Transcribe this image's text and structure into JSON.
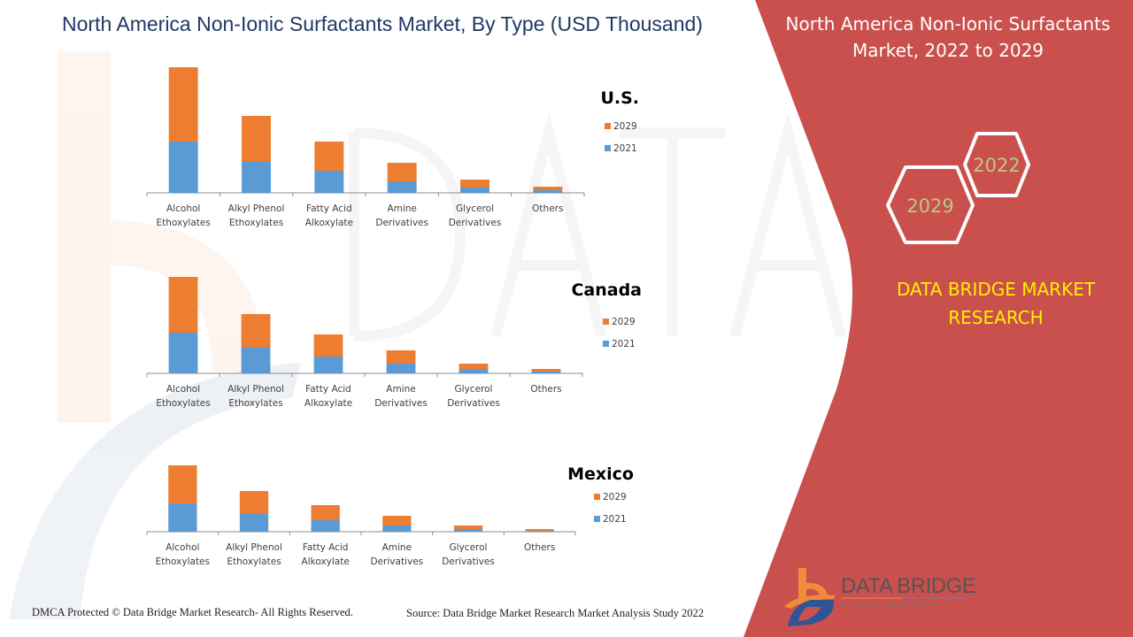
{
  "header": {
    "title": "North America Non-Ionic Surfactants Market, By Type (USD Thousand)"
  },
  "side_panel": {
    "title_line1": "North America Non-Ionic Surfactants",
    "title_line2": "Market, 2022 to 2029",
    "hex_year_1": "2022",
    "hex_year_2": "2029",
    "brand_line1": "DATA BRIDGE MARKET",
    "brand_line2": "RESEARCH",
    "logo_name": "DATA BRIDGE",
    "logo_sub": "MARKET RESEARCH"
  },
  "footer": {
    "copyright": "DMCA Protected © Data Bridge Market Research- All Rights Reserved.",
    "source": "Source: Data Bridge Market Research Market Analysis Study 2022"
  },
  "colors": {
    "series_2029": "#ed7d31",
    "series_2021": "#5b9bd5",
    "panel_red": "#c9504d",
    "brand_yellow": "#ffef00",
    "title_navy": "#1f3864",
    "hex_text": "#b8c98a"
  },
  "chart_data": [
    {
      "type": "bar",
      "stacked": true,
      "title": "U.S.",
      "xlabel": "",
      "ylabel": "",
      "unit": "USD Thousand (relative, no axis shown)",
      "categories": [
        [
          "Alcohol",
          "Ethoxylates"
        ],
        [
          "Alkyl Phenol",
          "Ethoxylates"
        ],
        [
          "Fatty Acid",
          "Alkoxylate"
        ],
        [
          "Amine",
          "Derivatives"
        ],
        [
          "Glycerol",
          "Derivatives"
        ],
        [
          "Others",
          ""
        ]
      ],
      "series": [
        {
          "name": "2021",
          "values": [
            58,
            36,
            25,
            13,
            6,
            3
          ]
        },
        {
          "name": "2029",
          "values": [
            84,
            51,
            33,
            21,
            9,
            4
          ]
        }
      ],
      "legend": [
        "2029",
        "2021"
      ],
      "legend_position": "right",
      "ylim": [
        0,
        145
      ],
      "grid": false
    },
    {
      "type": "bar",
      "stacked": true,
      "title": "Canada",
      "xlabel": "",
      "ylabel": "",
      "unit": "USD Thousand (relative, no axis shown)",
      "categories": [
        [
          "Alcohol",
          "Ethoxylates"
        ],
        [
          "Alkyl Phenol",
          "Ethoxylates"
        ],
        [
          "Fatty Acid",
          "Alkoxylate"
        ],
        [
          "Amine",
          "Derivatives"
        ],
        [
          "Glycerol",
          "Derivatives"
        ],
        [
          "Others",
          ""
        ]
      ],
      "series": [
        {
          "name": "2021",
          "values": [
            46,
            29,
            19,
            11,
            5,
            2
          ]
        },
        {
          "name": "2029",
          "values": [
            63,
            38,
            25,
            15,
            6,
            3
          ]
        }
      ],
      "legend": [
        "2029",
        "2021"
      ],
      "legend_position": "right",
      "ylim": [
        0,
        112
      ],
      "grid": false
    },
    {
      "type": "bar",
      "stacked": true,
      "title": "Mexico",
      "xlabel": "",
      "ylabel": "",
      "unit": "USD Thousand (relative, no axis shown)",
      "categories": [
        [
          "Alcohol",
          "Ethoxylates"
        ],
        [
          "Alkyl Phenol",
          "Ethoxylates"
        ],
        [
          "Fatty Acid",
          "Alkoxylate"
        ],
        [
          "Amine",
          "Derivatives"
        ],
        [
          "Glycerol",
          "Derivatives"
        ],
        [
          "Others",
          ""
        ]
      ],
      "series": [
        {
          "name": "2021",
          "values": [
            32,
            20,
            13,
            7,
            3,
            1
          ]
        },
        {
          "name": "2029",
          "values": [
            43,
            26,
            17,
            11,
            4,
            2
          ]
        }
      ],
      "legend": [
        "2029",
        "2021"
      ],
      "legend_position": "right",
      "ylim": [
        0,
        77
      ],
      "grid": false
    }
  ]
}
